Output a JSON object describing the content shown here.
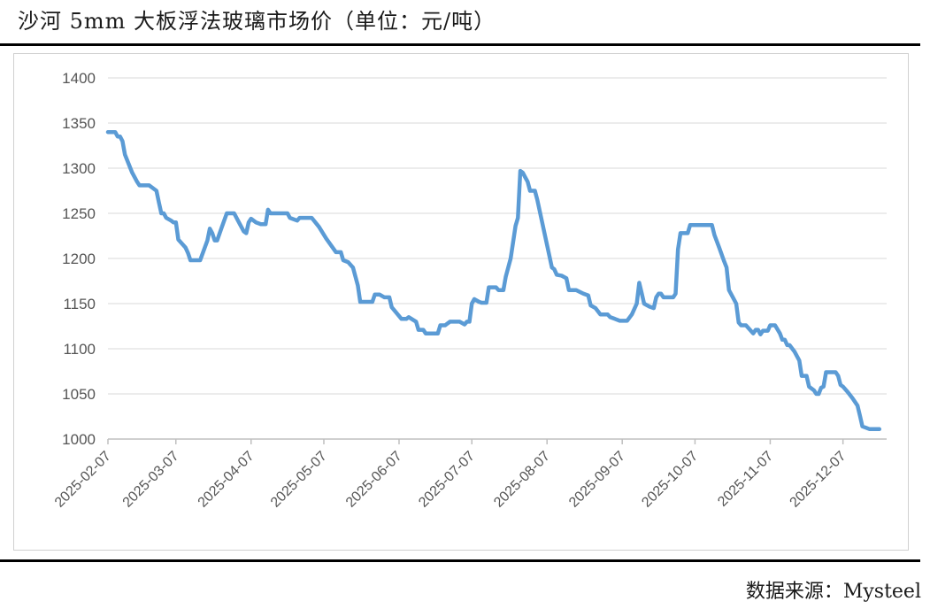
{
  "title": "沙河 5mm 大板浮法玻璃市场价（单位：元/吨）",
  "source": "数据来源：Mysteel",
  "colors": {
    "line": "#5b9bd5",
    "grid": "#d9d9d9",
    "axis": "#bfbfbf"
  },
  "chart_data": {
    "type": "line",
    "title": "",
    "xlabel": "",
    "ylabel": "",
    "ylim": [
      1000,
      1400
    ],
    "y_ticks": [
      1000,
      1050,
      1100,
      1150,
      1200,
      1250,
      1300,
      1350,
      1400
    ],
    "x_ticks": [
      "2025-02-07",
      "2025-03-07",
      "2025-04-07",
      "2025-05-07",
      "2025-06-07",
      "2025-07-07",
      "2025-08-07",
      "2025-09-07",
      "2025-10-07",
      "2025-11-07",
      "2025-12-07"
    ],
    "grid": true,
    "legend": "none",
    "series": [
      {
        "points": [
          [
            "2025-02-07",
            1340
          ],
          [
            "2025-02-10",
            1340
          ],
          [
            "2025-02-11",
            1335
          ],
          [
            "2025-02-12",
            1335
          ],
          [
            "2025-02-13",
            1330
          ],
          [
            "2025-02-14",
            1315
          ],
          [
            "2025-02-17",
            1295
          ],
          [
            "2025-02-19",
            1285
          ],
          [
            "2025-02-20",
            1281
          ],
          [
            "2025-02-24",
            1281
          ],
          [
            "2025-02-27",
            1275
          ],
          [
            "2025-02-28",
            1262
          ],
          [
            "2025-03-01",
            1250
          ],
          [
            "2025-03-02",
            1250
          ],
          [
            "2025-03-03",
            1245
          ],
          [
            "2025-03-05",
            1242
          ],
          [
            "2025-03-06",
            1240
          ],
          [
            "2025-03-07",
            1240
          ],
          [
            "2025-03-08",
            1221
          ],
          [
            "2025-03-11",
            1212
          ],
          [
            "2025-03-12",
            1206
          ],
          [
            "2025-03-13",
            1198
          ],
          [
            "2025-03-17",
            1198
          ],
          [
            "2025-03-20",
            1220
          ],
          [
            "2025-03-21",
            1233
          ],
          [
            "2025-03-22",
            1228
          ],
          [
            "2025-03-23",
            1220
          ],
          [
            "2025-03-24",
            1220
          ],
          [
            "2025-03-26",
            1235
          ],
          [
            "2025-03-28",
            1250
          ],
          [
            "2025-03-31",
            1250
          ],
          [
            "2025-04-02",
            1240
          ],
          [
            "2025-04-04",
            1230
          ],
          [
            "2025-04-05",
            1228
          ],
          [
            "2025-04-06",
            1240
          ],
          [
            "2025-04-07",
            1244
          ],
          [
            "2025-04-09",
            1240
          ],
          [
            "2025-04-11",
            1238
          ],
          [
            "2025-04-13",
            1238
          ],
          [
            "2025-04-14",
            1254
          ],
          [
            "2025-04-15",
            1250
          ],
          [
            "2025-04-22",
            1250
          ],
          [
            "2025-04-23",
            1245
          ],
          [
            "2025-04-26",
            1242
          ],
          [
            "2025-04-27",
            1245
          ],
          [
            "2025-05-02",
            1245
          ],
          [
            "2025-05-05",
            1235
          ],
          [
            "2025-05-08",
            1222
          ],
          [
            "2025-05-12",
            1207
          ],
          [
            "2025-05-14",
            1207
          ],
          [
            "2025-05-15",
            1198
          ],
          [
            "2025-05-17",
            1196
          ],
          [
            "2025-05-19",
            1190
          ],
          [
            "2025-05-21",
            1170
          ],
          [
            "2025-05-22",
            1152
          ],
          [
            "2025-05-27",
            1152
          ],
          [
            "2025-05-28",
            1160
          ],
          [
            "2025-05-30",
            1160
          ],
          [
            "2025-06-01",
            1157
          ],
          [
            "2025-06-03",
            1157
          ],
          [
            "2025-06-04",
            1146
          ],
          [
            "2025-06-08",
            1133
          ],
          [
            "2025-06-10",
            1133
          ],
          [
            "2025-06-11",
            1135
          ],
          [
            "2025-06-14",
            1130
          ],
          [
            "2025-06-15",
            1121
          ],
          [
            "2025-06-17",
            1121
          ],
          [
            "2025-06-18",
            1117
          ],
          [
            "2025-06-23",
            1117
          ],
          [
            "2025-06-24",
            1126
          ],
          [
            "2025-06-26",
            1126
          ],
          [
            "2025-06-27",
            1128
          ],
          [
            "2025-06-28",
            1130
          ],
          [
            "2025-07-02",
            1130
          ],
          [
            "2025-07-04",
            1127
          ],
          [
            "2025-07-05",
            1130
          ],
          [
            "2025-07-06",
            1130
          ],
          [
            "2025-07-07",
            1150
          ],
          [
            "2025-07-08",
            1155
          ],
          [
            "2025-07-10",
            1152
          ],
          [
            "2025-07-11",
            1151
          ],
          [
            "2025-07-13",
            1151
          ],
          [
            "2025-07-14",
            1168
          ],
          [
            "2025-07-17",
            1168
          ],
          [
            "2025-07-18",
            1165
          ],
          [
            "2025-07-20",
            1165
          ],
          [
            "2025-07-21",
            1180
          ],
          [
            "2025-07-23",
            1200
          ],
          [
            "2025-07-25",
            1236
          ],
          [
            "2025-07-26",
            1245
          ],
          [
            "2025-07-27",
            1297
          ],
          [
            "2025-07-28",
            1295
          ],
          [
            "2025-07-29",
            1290
          ],
          [
            "2025-07-30",
            1285
          ],
          [
            "2025-07-31",
            1275
          ],
          [
            "2025-08-02",
            1275
          ],
          [
            "2025-08-03",
            1265
          ],
          [
            "2025-08-05",
            1240
          ],
          [
            "2025-08-07",
            1215
          ],
          [
            "2025-08-09",
            1190
          ],
          [
            "2025-08-10",
            1188
          ],
          [
            "2025-08-11",
            1182
          ],
          [
            "2025-08-13",
            1181
          ],
          [
            "2025-08-15",
            1178
          ],
          [
            "2025-08-16",
            1165
          ],
          [
            "2025-08-19",
            1165
          ],
          [
            "2025-08-22",
            1161
          ],
          [
            "2025-08-24",
            1159
          ],
          [
            "2025-08-25",
            1148
          ],
          [
            "2025-08-27",
            1145
          ],
          [
            "2025-08-29",
            1138
          ],
          [
            "2025-09-01",
            1138
          ],
          [
            "2025-09-02",
            1135
          ],
          [
            "2025-09-04",
            1133
          ],
          [
            "2025-09-06",
            1131
          ],
          [
            "2025-09-09",
            1131
          ],
          [
            "2025-09-11",
            1138
          ],
          [
            "2025-09-13",
            1150
          ],
          [
            "2025-09-14",
            1173
          ],
          [
            "2025-09-15",
            1162
          ],
          [
            "2025-09-16",
            1150
          ],
          [
            "2025-09-18",
            1147
          ],
          [
            "2025-09-20",
            1145
          ],
          [
            "2025-09-21",
            1157
          ],
          [
            "2025-09-22",
            1161
          ],
          [
            "2025-09-23",
            1161
          ],
          [
            "2025-09-24",
            1157
          ],
          [
            "2025-09-28",
            1157
          ],
          [
            "2025-09-29",
            1161
          ],
          [
            "2025-09-30",
            1210
          ],
          [
            "2025-10-01",
            1228
          ],
          [
            "2025-10-04",
            1228
          ],
          [
            "2025-10-05",
            1237
          ],
          [
            "2025-10-07",
            1237
          ],
          [
            "2025-10-12",
            1237
          ],
          [
            "2025-10-14",
            1237
          ],
          [
            "2025-10-15",
            1226
          ],
          [
            "2025-10-17",
            1212
          ],
          [
            "2025-10-19",
            1197
          ],
          [
            "2025-10-20",
            1190
          ],
          [
            "2025-10-21",
            1165
          ],
          [
            "2025-10-23",
            1155
          ],
          [
            "2025-10-24",
            1150
          ],
          [
            "2025-10-25",
            1129
          ],
          [
            "2025-10-26",
            1126
          ],
          [
            "2025-10-28",
            1126
          ],
          [
            "2025-10-30",
            1120
          ],
          [
            "2025-10-31",
            1117
          ],
          [
            "2025-11-01",
            1121
          ],
          [
            "2025-11-02",
            1121
          ],
          [
            "2025-11-03",
            1116
          ],
          [
            "2025-11-04",
            1120
          ],
          [
            "2025-11-06",
            1120
          ],
          [
            "2025-11-07",
            1126
          ],
          [
            "2025-11-09",
            1126
          ],
          [
            "2025-11-11",
            1117
          ],
          [
            "2025-11-12",
            1110
          ],
          [
            "2025-11-13",
            1110
          ],
          [
            "2025-11-14",
            1104
          ],
          [
            "2025-11-15",
            1104
          ],
          [
            "2025-11-17",
            1097
          ],
          [
            "2025-11-19",
            1087
          ],
          [
            "2025-11-20",
            1070
          ],
          [
            "2025-11-22",
            1070
          ],
          [
            "2025-11-23",
            1058
          ],
          [
            "2025-11-25",
            1054
          ],
          [
            "2025-11-26",
            1050
          ],
          [
            "2025-11-27",
            1050
          ],
          [
            "2025-11-28",
            1057
          ],
          [
            "2025-11-29",
            1058
          ],
          [
            "2025-11-30",
            1074
          ],
          [
            "2025-12-04",
            1074
          ],
          [
            "2025-12-05",
            1070
          ],
          [
            "2025-12-06",
            1060
          ],
          [
            "2025-12-07",
            1058
          ],
          [
            "2025-12-09",
            1052
          ],
          [
            "2025-12-11",
            1045
          ],
          [
            "2025-12-13",
            1037
          ],
          [
            "2025-12-14",
            1026
          ],
          [
            "2025-12-15",
            1014
          ],
          [
            "2025-12-18",
            1011
          ],
          [
            "2025-12-22",
            1011
          ]
        ]
      }
    ]
  }
}
